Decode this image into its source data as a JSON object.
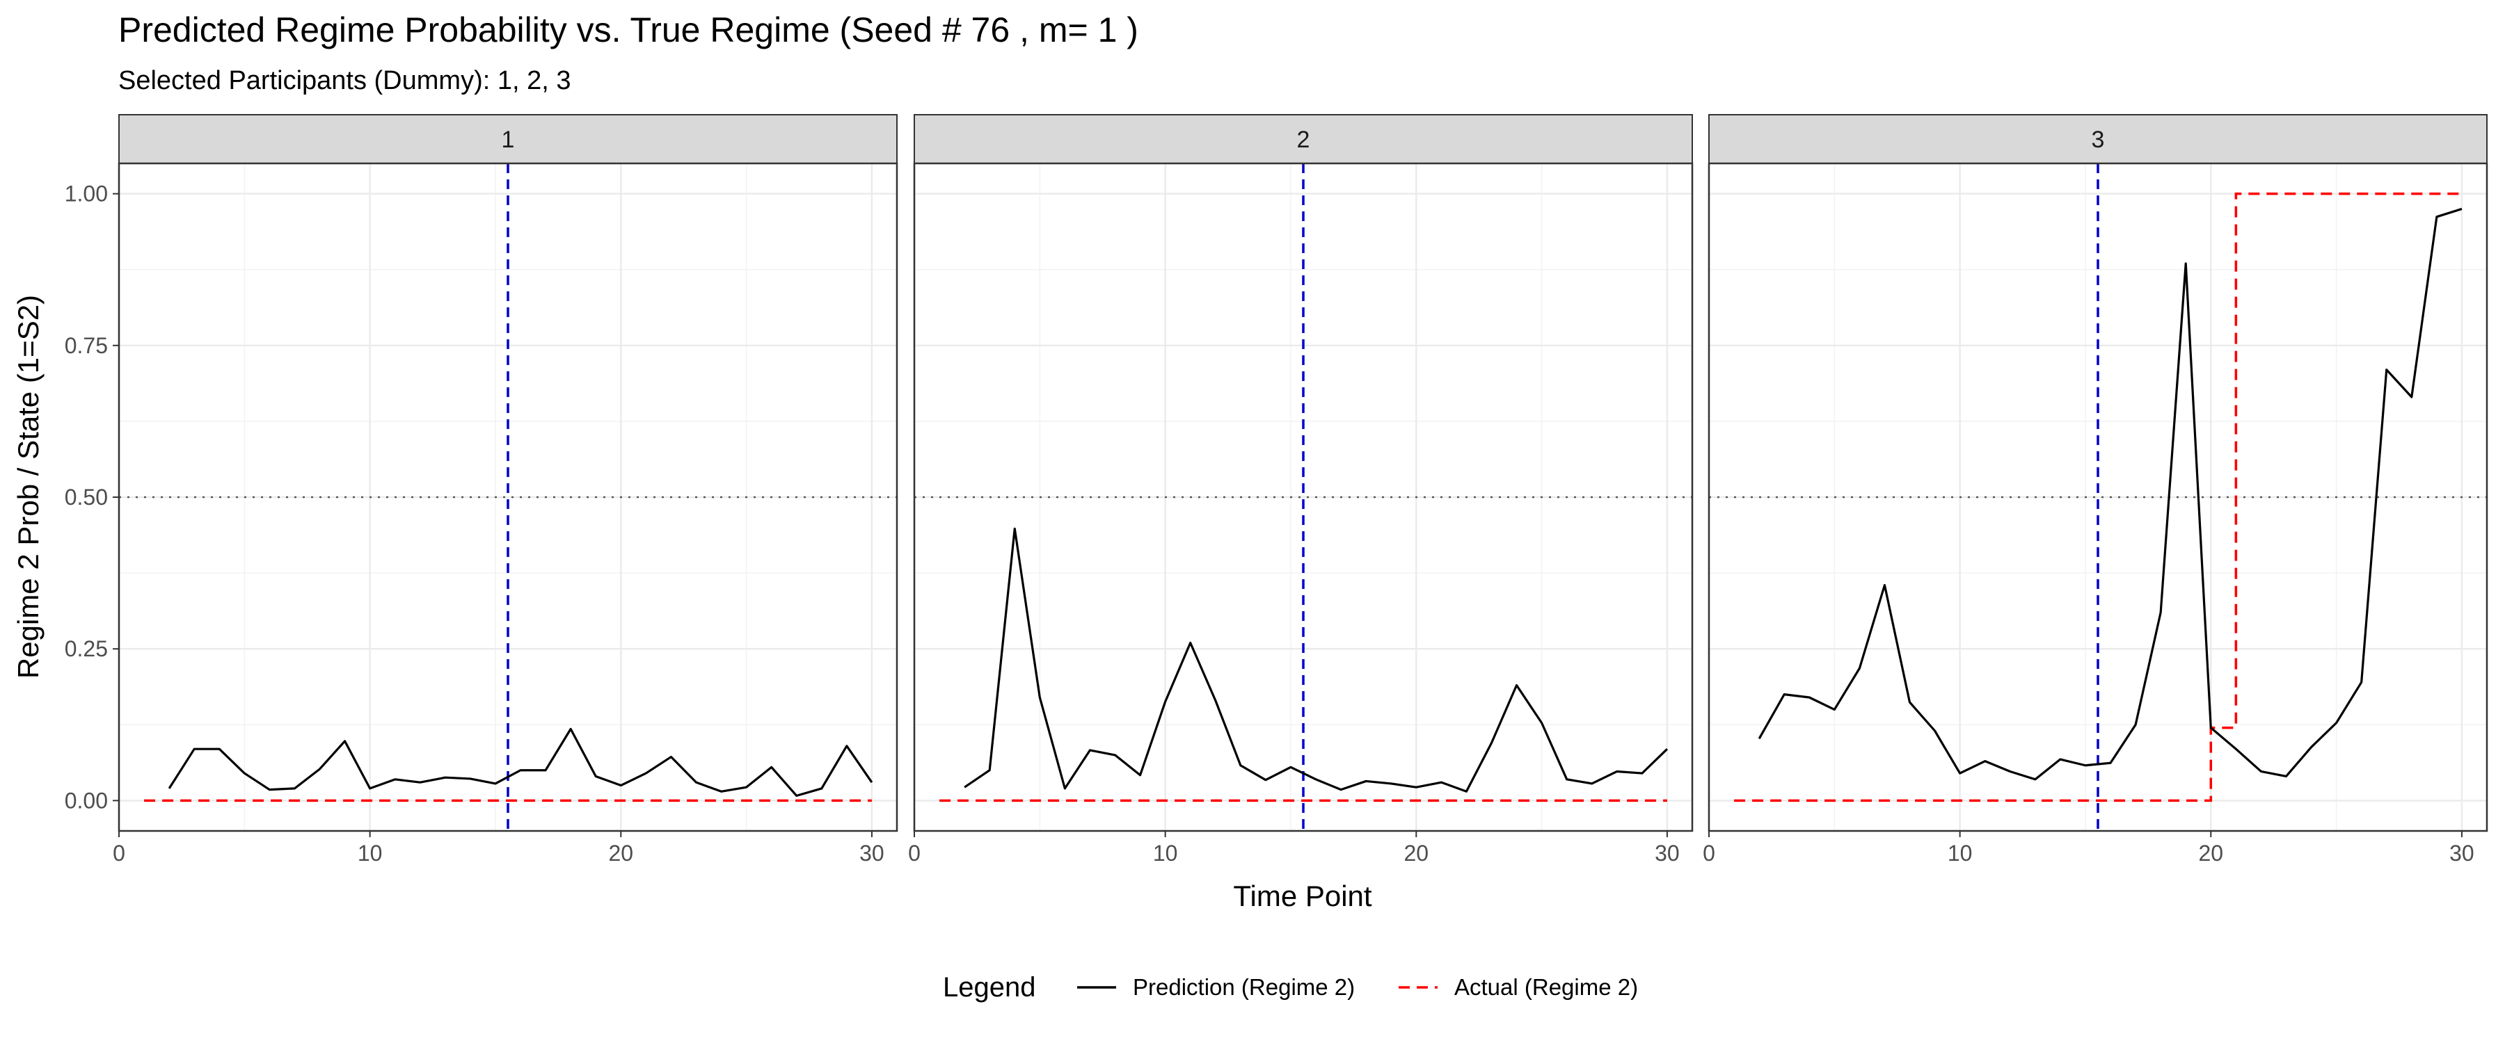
{
  "chart_data": {
    "type": "line",
    "title": "Predicted Regime Probability vs. True Regime (Seed # 76 , m= 1 )",
    "subtitle": "Selected Participants (Dummy): 1, 2, 3",
    "xlabel": "Time Point",
    "ylabel": "Regime 2 Prob / State (1=S2)",
    "xlim": [
      0,
      31
    ],
    "ylim": [
      -0.05,
      1.05
    ],
    "x_ticks": [
      0,
      10,
      20,
      30
    ],
    "y_ticks": [
      0,
      0.25,
      0.5,
      0.75,
      1
    ],
    "x_tick_labels": [
      "0",
      "10",
      "20",
      "30"
    ],
    "y_tick_labels": [
      "0.00",
      "0.25",
      "0.50",
      "0.75",
      "1.00"
    ],
    "grid": true,
    "reference_lines": {
      "horizontal_dotted_y": 0.5,
      "vertical_dashed_x": 15.5,
      "vertical_color": "#0000cc",
      "horizontal_color": "#555555"
    },
    "legend": {
      "title": "Legend",
      "position": "bottom",
      "entries": [
        {
          "label": "Prediction (Regime 2)",
          "color": "#000000",
          "style": "solid"
        },
        {
          "label": "Actual (Regime 2)",
          "color": "#ff0000",
          "style": "dashed"
        }
      ]
    },
    "panels": [
      {
        "label": "1",
        "prediction": {
          "x": [
            2,
            3,
            4,
            5,
            6,
            7,
            8,
            9,
            10,
            11,
            12,
            13,
            14,
            15,
            16,
            17,
            18,
            19,
            20,
            21,
            22,
            23,
            24,
            25,
            26,
            27,
            28,
            29,
            30
          ],
          "y": [
            0.02,
            0.085,
            0.085,
            0.045,
            0.018,
            0.02,
            0.052,
            0.098,
            0.02,
            0.035,
            0.03,
            0.038,
            0.036,
            0.028,
            0.05,
            0.05,
            0.118,
            0.04,
            0.025,
            0.045,
            0.072,
            0.03,
            0.015,
            0.022,
            0.055,
            0.008,
            0.02,
            0.09,
            0.03
          ]
        },
        "actual": {
          "x": [
            1,
            30
          ],
          "y": [
            0,
            0
          ]
        }
      },
      {
        "label": "2",
        "prediction": {
          "x": [
            2,
            3,
            4,
            5,
            6,
            7,
            8,
            9,
            10,
            11,
            12,
            13,
            14,
            15,
            16,
            17,
            18,
            19,
            20,
            21,
            22,
            23,
            24,
            25,
            26,
            27,
            28,
            29,
            30
          ],
          "y": [
            0.022,
            0.05,
            0.448,
            0.17,
            0.02,
            0.083,
            0.075,
            0.042,
            0.163,
            0.26,
            0.165,
            0.058,
            0.034,
            0.055,
            0.035,
            0.018,
            0.032,
            0.028,
            0.022,
            0.03,
            0.015,
            0.095,
            0.19,
            0.128,
            0.035,
            0.028,
            0.048,
            0.045,
            0.085
          ]
        },
        "actual": {
          "x": [
            1,
            30
          ],
          "y": [
            0,
            0
          ]
        }
      },
      {
        "label": "3",
        "prediction": {
          "x": [
            2,
            3,
            4,
            5,
            6,
            7,
            8,
            9,
            10,
            11,
            12,
            13,
            14,
            15,
            16,
            17,
            18,
            19,
            20,
            21,
            22,
            23,
            24,
            25,
            26,
            27,
            28,
            29,
            30
          ],
          "y": [
            0.102,
            0.175,
            0.17,
            0.15,
            0.218,
            0.355,
            0.162,
            0.115,
            0.045,
            0.065,
            0.048,
            0.035,
            0.068,
            0.058,
            0.062,
            0.125,
            0.31,
            0.885,
            0.12,
            0.085,
            0.048,
            0.04,
            0.088,
            0.128,
            0.195,
            0.71,
            0.665,
            0.962,
            0.975
          ]
        },
        "actual": {
          "x": [
            1,
            20,
            20,
            21,
            21,
            30
          ],
          "y": [
            0,
            0,
            0.12,
            0.12,
            1,
            1
          ]
        }
      }
    ]
  }
}
